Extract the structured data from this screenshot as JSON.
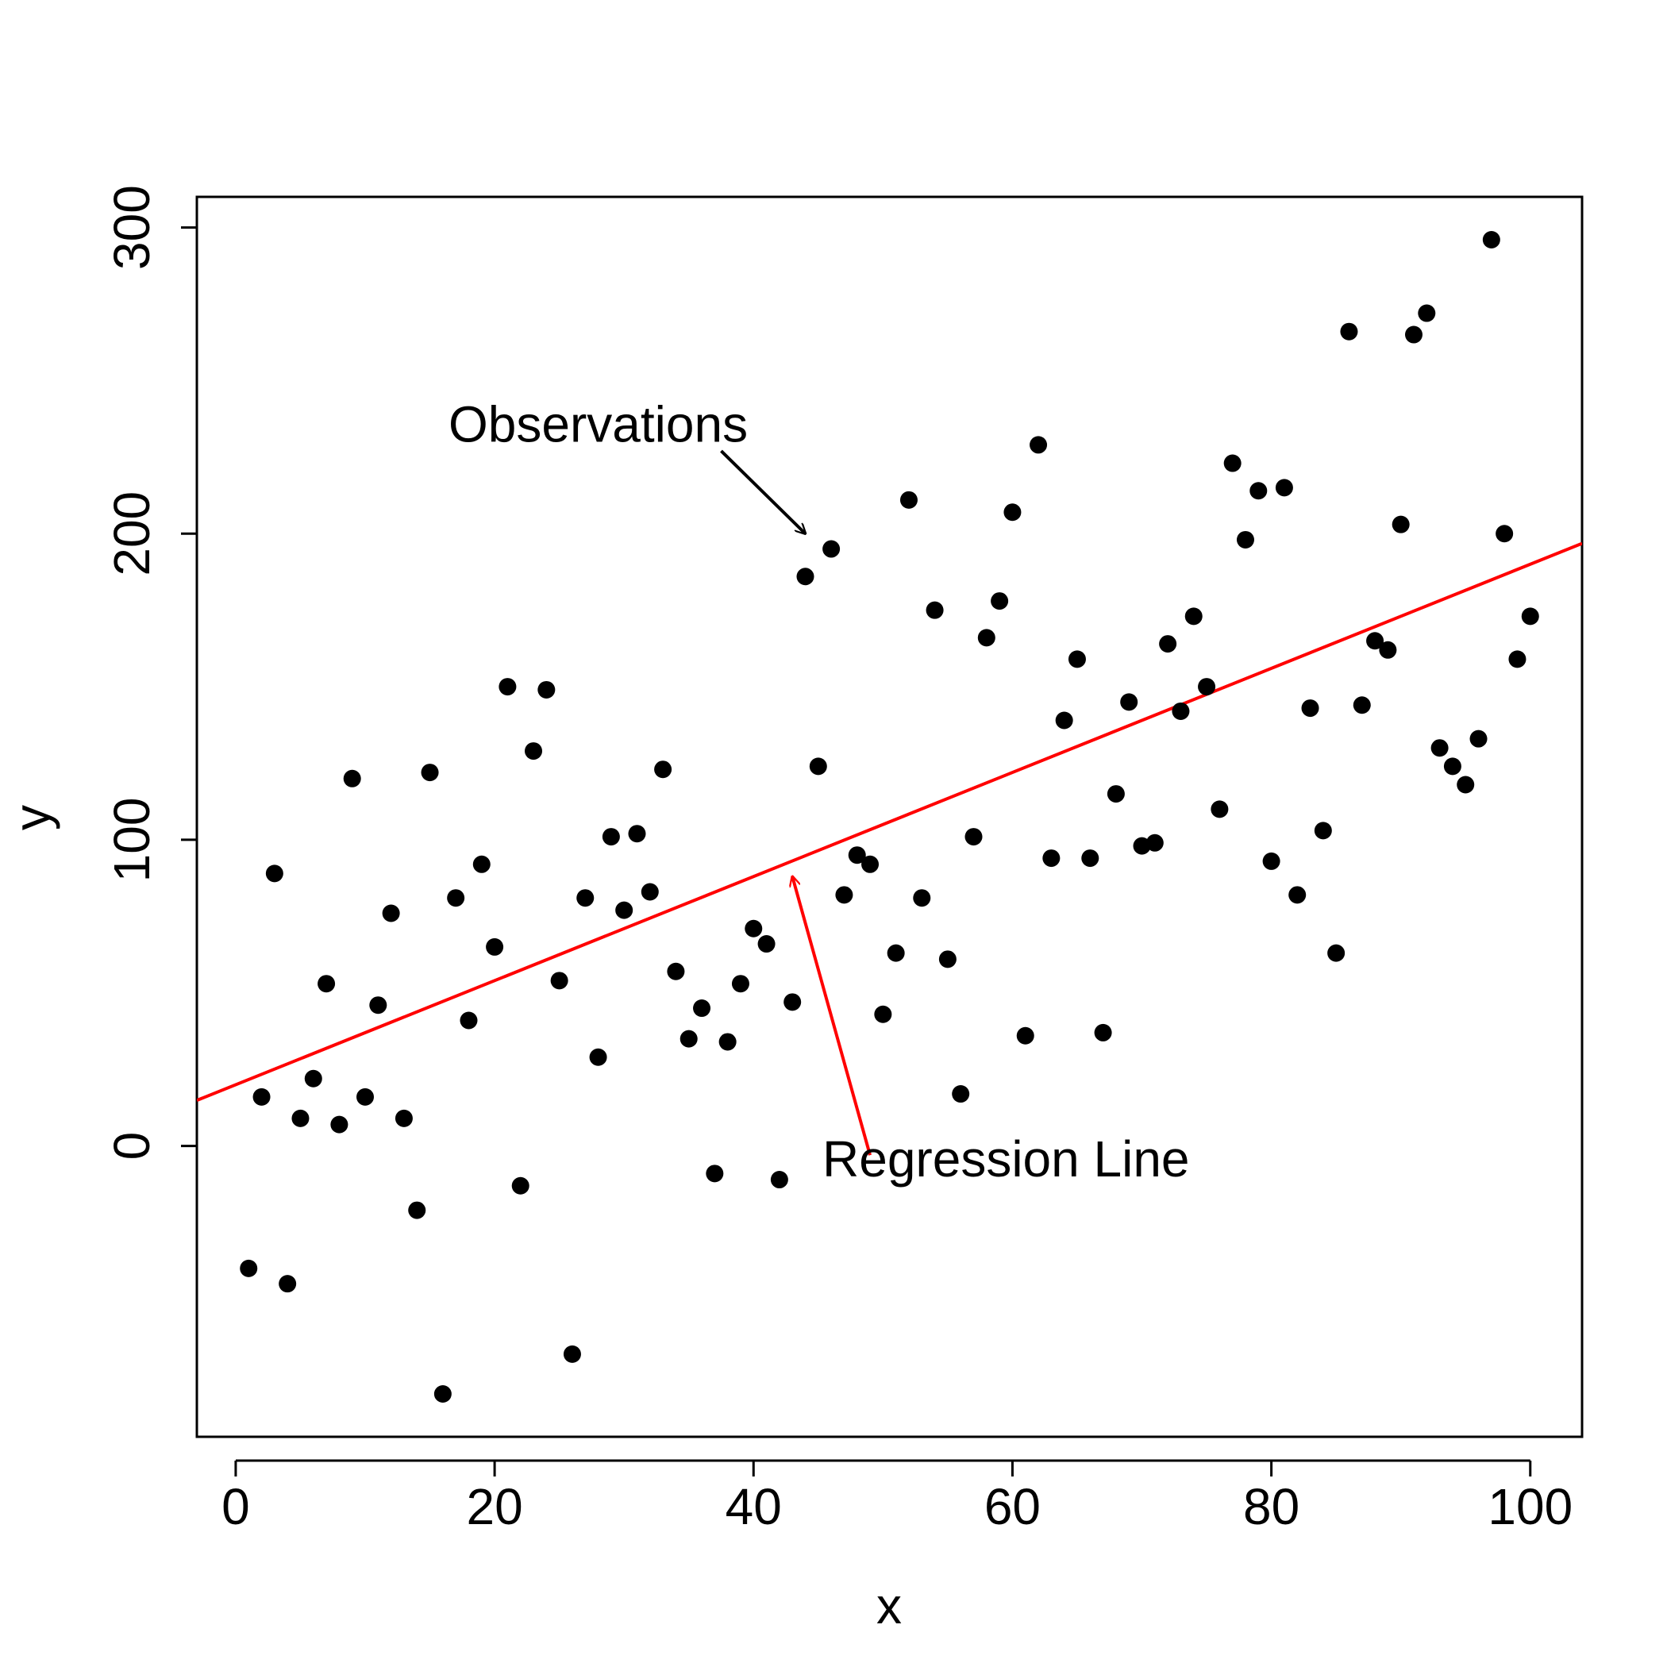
{
  "chart_data": {
    "type": "scatter",
    "title": "",
    "xlabel": "x",
    "ylabel": "y",
    "xlim": [
      -3,
      104
    ],
    "ylim": [
      -95,
      310
    ],
    "x_ticks": [
      0,
      20,
      40,
      60,
      80,
      100
    ],
    "x_tick_labels": [
      "0",
      "20",
      "40",
      "60",
      "80",
      "100"
    ],
    "y_ticks": [
      0,
      100,
      200,
      300
    ],
    "y_tick_labels": [
      "0",
      "100",
      "200",
      "300"
    ],
    "grid": false,
    "legend": "none",
    "colors": {
      "points": "#000000",
      "regression": "#ff0000",
      "axes": "#000000"
    },
    "points": [
      [
        1,
        -40
      ],
      [
        2,
        16
      ],
      [
        3,
        89
      ],
      [
        4,
        -45
      ],
      [
        5,
        9
      ],
      [
        6,
        22
      ],
      [
        7,
        53
      ],
      [
        8,
        7
      ],
      [
        9,
        120
      ],
      [
        10,
        16
      ],
      [
        11,
        46
      ],
      [
        12,
        76
      ],
      [
        13,
        9
      ],
      [
        14,
        -21
      ],
      [
        15,
        122
      ],
      [
        16,
        -81
      ],
      [
        17,
        81
      ],
      [
        18,
        41
      ],
      [
        19,
        92
      ],
      [
        20,
        65
      ],
      [
        21,
        150
      ],
      [
        22,
        -13
      ],
      [
        23,
        129
      ],
      [
        24,
        149
      ],
      [
        25,
        54
      ],
      [
        26,
        -68
      ],
      [
        27,
        81
      ],
      [
        28,
        29
      ],
      [
        29,
        101
      ],
      [
        30,
        77
      ],
      [
        31,
        102
      ],
      [
        32,
        83
      ],
      [
        33,
        123
      ],
      [
        34,
        57
      ],
      [
        35,
        35
      ],
      [
        36,
        45
      ],
      [
        37,
        -9
      ],
      [
        38,
        34
      ],
      [
        39,
        53
      ],
      [
        40,
        71
      ],
      [
        41,
        66
      ],
      [
        42,
        -11
      ],
      [
        43,
        47
      ],
      [
        44,
        186
      ],
      [
        45,
        124
      ],
      [
        46,
        195
      ],
      [
        47,
        82
      ],
      [
        48,
        95
      ],
      [
        49,
        92
      ],
      [
        50,
        43
      ],
      [
        51,
        63
      ],
      [
        52,
        211
      ],
      [
        53,
        81
      ],
      [
        54,
        175
      ],
      [
        55,
        61
      ],
      [
        56,
        17
      ],
      [
        57,
        101
      ],
      [
        58,
        166
      ],
      [
        59,
        178
      ],
      [
        60,
        207
      ],
      [
        61,
        36
      ],
      [
        62,
        229
      ],
      [
        63,
        94
      ],
      [
        64,
        139
      ],
      [
        65,
        159
      ],
      [
        66,
        94
      ],
      [
        67,
        37
      ],
      [
        68,
        115
      ],
      [
        69,
        145
      ],
      [
        70,
        98
      ],
      [
        71,
        99
      ],
      [
        72,
        164
      ],
      [
        73,
        142
      ],
      [
        74,
        173
      ],
      [
        75,
        150
      ],
      [
        76,
        110
      ],
      [
        77,
        223
      ],
      [
        78,
        198
      ],
      [
        79,
        214
      ],
      [
        80,
        93
      ],
      [
        81,
        215
      ],
      [
        82,
        82
      ],
      [
        83,
        143
      ],
      [
        84,
        103
      ],
      [
        85,
        63
      ],
      [
        86,
        266
      ],
      [
        87,
        144
      ],
      [
        88,
        165
      ],
      [
        89,
        162
      ],
      [
        90,
        203
      ],
      [
        91,
        265
      ],
      [
        92,
        272
      ],
      [
        93,
        130
      ],
      [
        94,
        124
      ],
      [
        95,
        118
      ],
      [
        96,
        133
      ],
      [
        97,
        296
      ],
      [
        98,
        200
      ],
      [
        99,
        159
      ],
      [
        100,
        173
      ]
    ],
    "regression_line": {
      "intercept": 20,
      "slope": 1.7,
      "x_range": [
        -3,
        104
      ]
    },
    "annotations": [
      {
        "id": "observations",
        "text": "Observations",
        "label_at": [
          28,
          230
        ],
        "arrow_from": [
          37.5,
          227
        ],
        "arrow_to": [
          44,
          200
        ],
        "color": "#000000"
      },
      {
        "id": "regression",
        "text": "Regression Line",
        "label_at": [
          59.5,
          -10
        ],
        "arrow_from": [
          49,
          -3
        ],
        "arrow_to": [
          43,
          88
        ],
        "color": "#ff0000"
      }
    ]
  }
}
